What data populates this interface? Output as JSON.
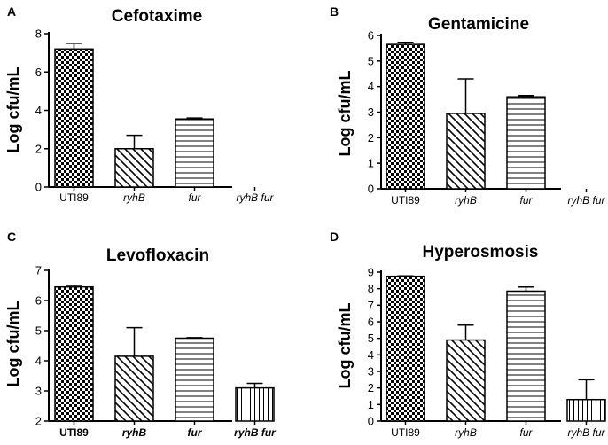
{
  "chart_data": [
    {
      "panel": "A",
      "type": "bar",
      "title": "Cefotaxime",
      "ylabel": "Log cfu/mL",
      "xlabel": "",
      "categories": [
        "UTI89",
        "ryhB",
        "fur",
        "ryhB fur"
      ],
      "values": [
        7.2,
        2.0,
        3.55,
        0
      ],
      "errors": [
        0.3,
        0.7,
        0.05,
        0
      ],
      "ylim": [
        0,
        8
      ],
      "yticks": [
        "0",
        "2",
        "4",
        "6",
        "8"
      ]
    },
    {
      "panel": "B",
      "type": "bar",
      "title": "Gentamicine",
      "ylabel": "Log cfu/mL",
      "xlabel": "",
      "categories": [
        "UTI89",
        "ryhB",
        "fur",
        "ryhB fur"
      ],
      "values": [
        5.65,
        2.95,
        3.6,
        0
      ],
      "errors": [
        0.08,
        1.35,
        0.05,
        0
      ],
      "ylim": [
        0,
        6
      ],
      "yticks": [
        "0",
        "1",
        "2",
        "3",
        "4",
        "5",
        "6"
      ]
    },
    {
      "panel": "C",
      "type": "bar",
      "title": "Levofloxacin",
      "ylabel": "Log cfu/mL",
      "xlabel": "",
      "categories": [
        "UTI89",
        "ryhB",
        "fur",
        "ryhB fur"
      ],
      "values": [
        6.45,
        4.15,
        4.75,
        3.1
      ],
      "errors": [
        0.05,
        0.95,
        0.02,
        0.15
      ],
      "ylim": [
        2,
        7
      ],
      "yticks": [
        "2",
        "3",
        "4",
        "5",
        "6",
        "7"
      ]
    },
    {
      "panel": "D",
      "type": "bar",
      "title": "Hyperosmosis",
      "ylabel": "Log cfu/mL",
      "xlabel": "",
      "categories": [
        "UTI89",
        "ryhB",
        "fur",
        "ryhB fur"
      ],
      "values": [
        8.75,
        4.9,
        7.85,
        1.3
      ],
      "errors": [
        0.02,
        0.9,
        0.25,
        1.2
      ],
      "ylim": [
        0,
        9
      ],
      "yticks": [
        "0",
        "1",
        "2",
        "3",
        "4",
        "5",
        "6",
        "7",
        "8",
        "9"
      ]
    }
  ]
}
